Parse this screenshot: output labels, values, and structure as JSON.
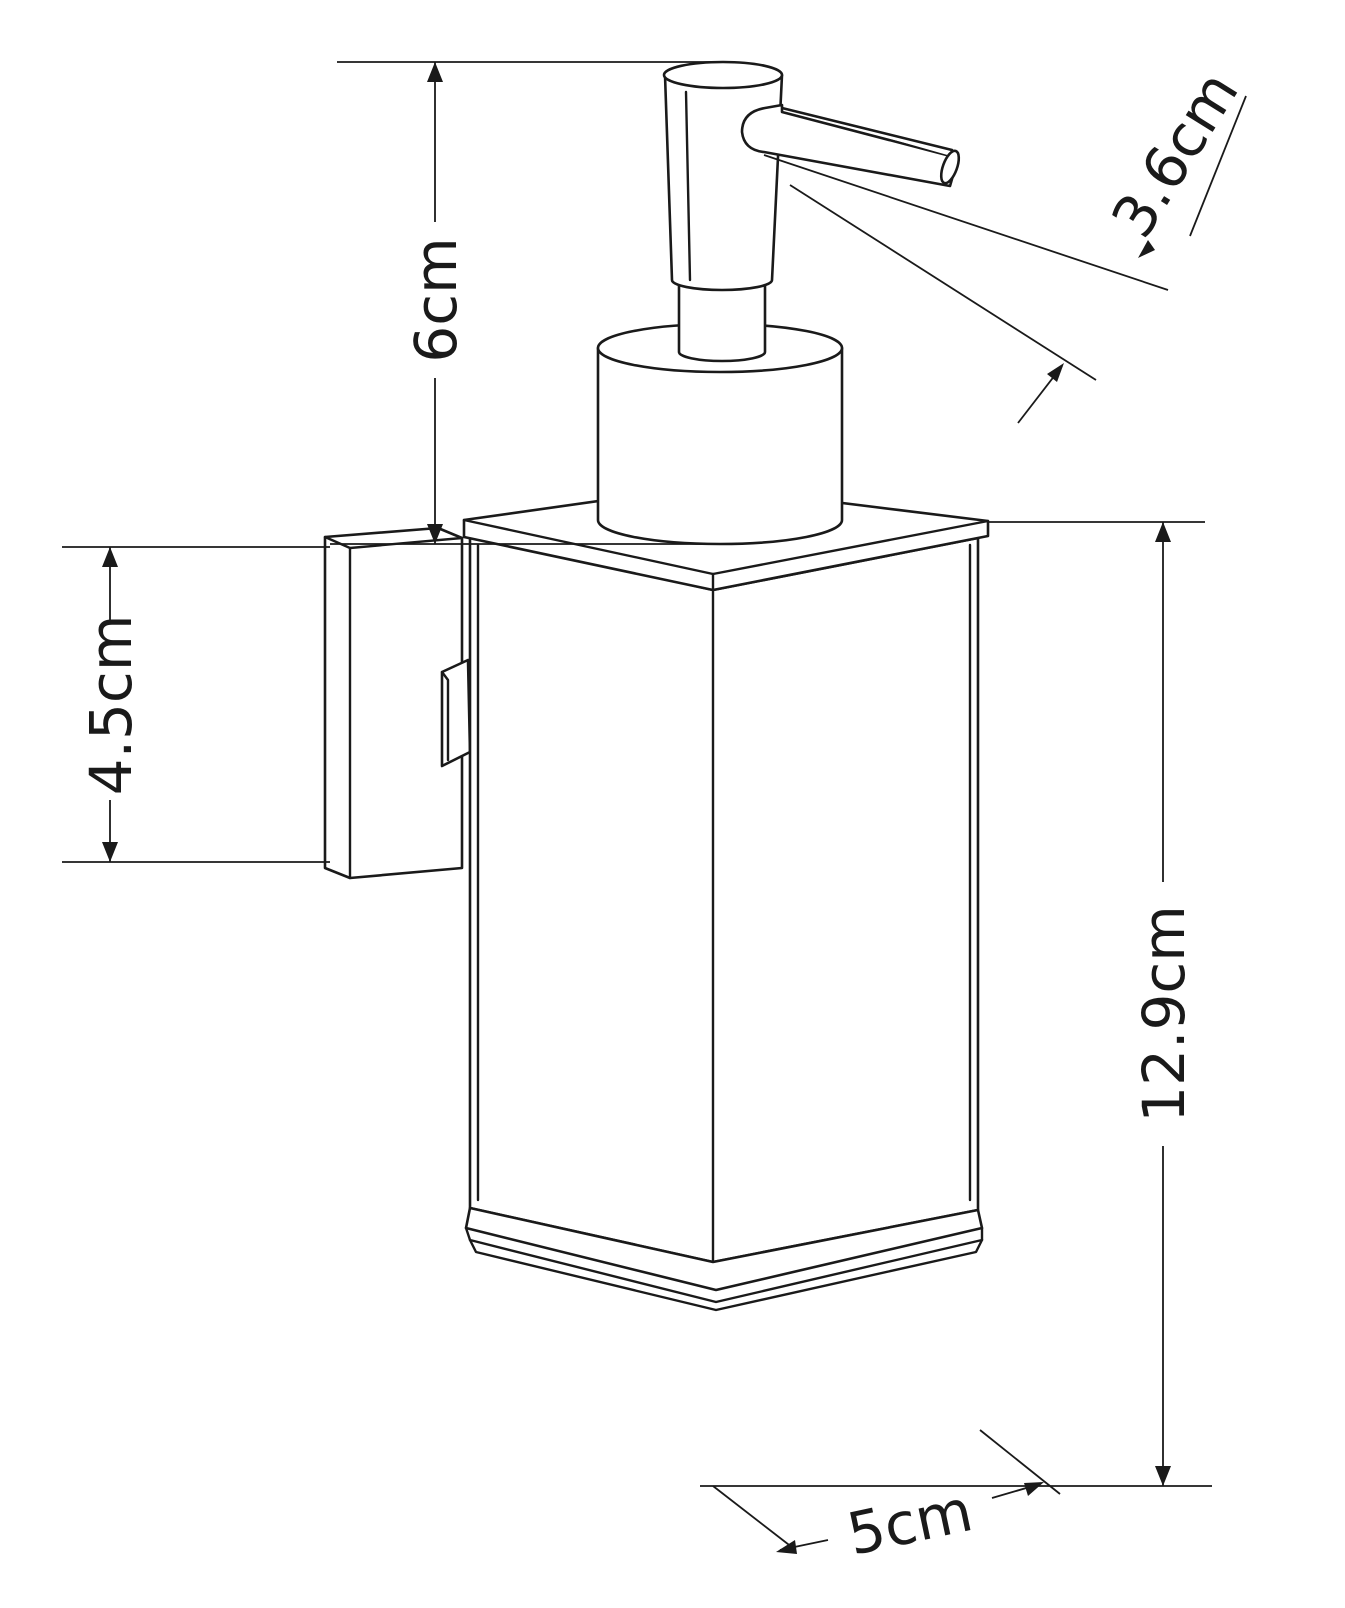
{
  "dimensions": {
    "pump_height": "6cm",
    "spout_length": "3.6cm",
    "bracket_height": "4.5cm",
    "body_height": "12.9cm",
    "body_width": "5cm"
  },
  "colors": {
    "line": "#1a1a1a",
    "background": "#ffffff"
  }
}
